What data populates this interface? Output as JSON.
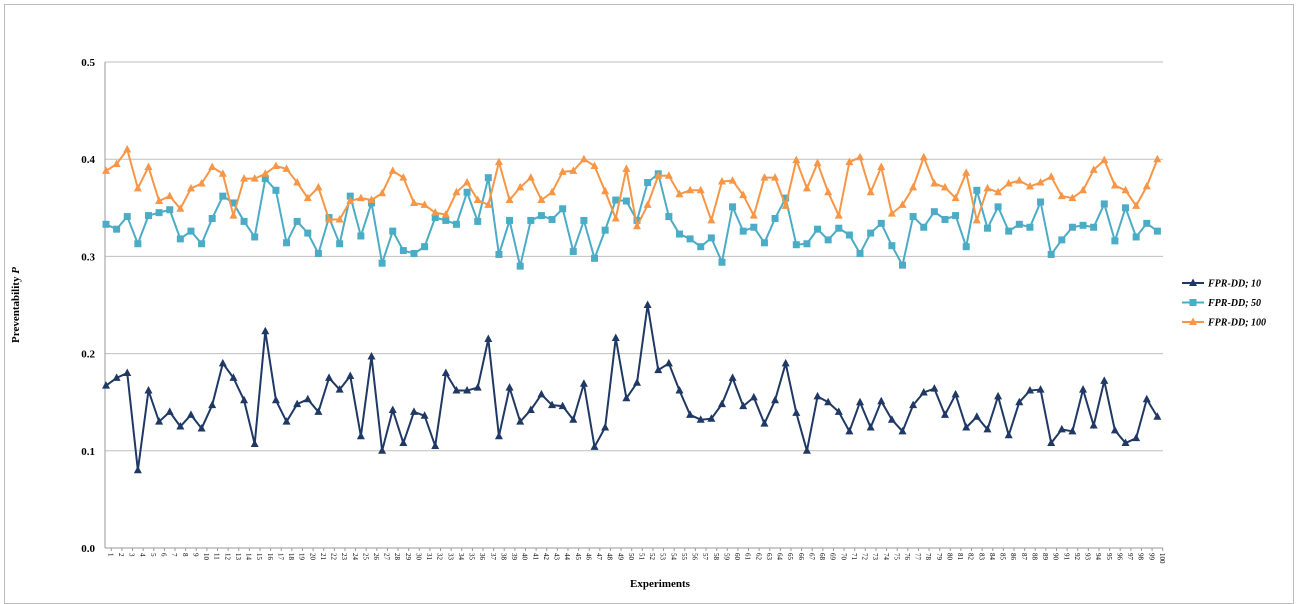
{
  "chart_data": {
    "type": "line",
    "title": "",
    "xlabel": "Experiments",
    "ylabel": "Preventability",
    "ylabel_symbol": "P",
    "ylim": [
      0,
      0.5
    ],
    "yticks": [
      "0.0",
      "0.1",
      "0.2",
      "0.3",
      "0.4",
      "0.5"
    ],
    "grid": true,
    "legend_position": "right",
    "x_count": 100,
    "series": [
      {
        "name": "FPR-DD; 10",
        "color": "#1f3864",
        "marker": "triangle",
        "values": [
          0.167,
          0.175,
          0.18,
          0.08,
          0.162,
          0.13,
          0.14,
          0.125,
          0.137,
          0.123,
          0.147,
          0.19,
          0.175,
          0.152,
          0.107,
          0.223,
          0.152,
          0.13,
          0.148,
          0.153,
          0.14,
          0.175,
          0.163,
          0.177,
          0.115,
          0.197,
          0.1,
          0.142,
          0.108,
          0.14,
          0.136,
          0.105,
          0.18,
          0.162,
          0.162,
          0.165,
          0.215,
          0.115,
          0.165,
          0.13,
          0.142,
          0.158,
          0.147,
          0.146,
          0.132,
          0.169,
          0.104,
          0.124,
          0.216,
          0.154,
          0.17,
          0.25,
          0.183,
          0.19,
          0.162,
          0.137,
          0.132,
          0.133,
          0.148,
          0.175,
          0.146,
          0.155,
          0.128,
          0.152,
          0.19,
          0.139,
          0.1,
          0.156,
          0.15,
          0.14,
          0.12,
          0.15,
          0.124,
          0.151,
          0.132,
          0.12,
          0.147,
          0.16,
          0.164,
          0.137,
          0.158,
          0.124,
          0.135,
          0.122,
          0.156,
          0.116,
          0.15,
          0.162,
          0.163,
          0.108,
          0.122,
          0.12,
          0.163,
          0.126,
          0.172,
          0.121,
          0.108,
          0.113,
          0.153,
          0.135
        ]
      },
      {
        "name": "FPR-DD; 50",
        "color": "#4bacc6",
        "marker": "square",
        "values": [
          0.333,
          0.328,
          0.341,
          0.313,
          0.342,
          0.345,
          0.348,
          0.318,
          0.326,
          0.313,
          0.339,
          0.362,
          0.355,
          0.336,
          0.32,
          0.38,
          0.368,
          0.314,
          0.336,
          0.324,
          0.303,
          0.34,
          0.313,
          0.362,
          0.321,
          0.355,
          0.293,
          0.326,
          0.306,
          0.303,
          0.31,
          0.34,
          0.337,
          0.333,
          0.366,
          0.336,
          0.381,
          0.302,
          0.337,
          0.29,
          0.337,
          0.342,
          0.338,
          0.349,
          0.305,
          0.337,
          0.298,
          0.327,
          0.358,
          0.357,
          0.337,
          0.376,
          0.385,
          0.341,
          0.323,
          0.318,
          0.31,
          0.319,
          0.294,
          0.351,
          0.326,
          0.33,
          0.314,
          0.339,
          0.36,
          0.312,
          0.313,
          0.328,
          0.317,
          0.329,
          0.322,
          0.303,
          0.324,
          0.334,
          0.311,
          0.291,
          0.341,
          0.33,
          0.346,
          0.338,
          0.342,
          0.31,
          0.368,
          0.329,
          0.351,
          0.326,
          0.333,
          0.33,
          0.356,
          0.302,
          0.317,
          0.33,
          0.332,
          0.33,
          0.354,
          0.316,
          0.35,
          0.32,
          0.334,
          0.326
        ]
      },
      {
        "name": "FPR-DD; 100",
        "color": "#f79646",
        "marker": "triangle",
        "values": [
          0.388,
          0.395,
          0.41,
          0.37,
          0.392,
          0.357,
          0.362,
          0.349,
          0.37,
          0.375,
          0.392,
          0.385,
          0.342,
          0.38,
          0.38,
          0.385,
          0.393,
          0.39,
          0.376,
          0.36,
          0.371,
          0.338,
          0.338,
          0.357,
          0.36,
          0.358,
          0.365,
          0.388,
          0.381,
          0.355,
          0.353,
          0.345,
          0.343,
          0.366,
          0.376,
          0.358,
          0.353,
          0.397,
          0.358,
          0.371,
          0.381,
          0.358,
          0.366,
          0.387,
          0.388,
          0.4,
          0.393,
          0.367,
          0.339,
          0.39,
          0.331,
          0.353,
          0.383,
          0.383,
          0.364,
          0.368,
          0.368,
          0.337,
          0.377,
          0.378,
          0.363,
          0.342,
          0.381,
          0.381,
          0.352,
          0.399,
          0.37,
          0.396,
          0.366,
          0.342,
          0.397,
          0.402,
          0.366,
          0.392,
          0.344,
          0.353,
          0.371,
          0.402,
          0.375,
          0.371,
          0.36,
          0.386,
          0.337,
          0.37,
          0.366,
          0.375,
          0.378,
          0.372,
          0.376,
          0.382,
          0.362,
          0.36,
          0.368,
          0.389,
          0.399,
          0.373,
          0.368,
          0.352,
          0.372,
          0.4
        ]
      }
    ]
  }
}
